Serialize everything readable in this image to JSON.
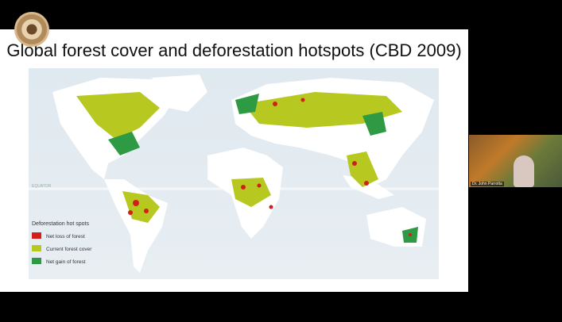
{
  "slide": {
    "title": "Global forest cover and deforestation hotspots (CBD 2009)",
    "map": {
      "equator_label": "EQUATOR",
      "legend": {
        "title": "Deforestation hot spots",
        "items": [
          "Net loss of forest",
          "Current forest cover",
          "Net gain of forest"
        ]
      }
    }
  },
  "participant": {
    "name": "Dr. John Parrotta"
  }
}
